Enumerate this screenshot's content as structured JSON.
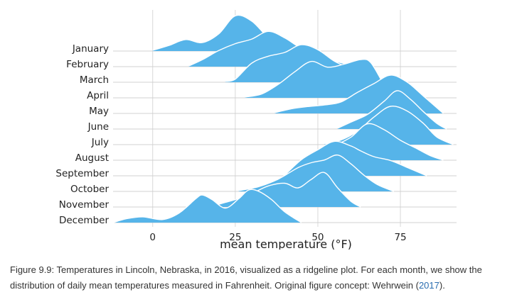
{
  "chart_data": {
    "type": "area",
    "subtype": "ridgeline",
    "xlabel": "mean temperature (°F)",
    "xlim": [
      -12,
      92
    ],
    "xticks": [
      0,
      25,
      50,
      75
    ],
    "tick_labels": [
      "0",
      "25",
      "50",
      "75"
    ],
    "grid": "vertical",
    "fill_color": "#56B4E9",
    "outline_color": "#ffffff",
    "categories": [
      "January",
      "February",
      "March",
      "April",
      "May",
      "June",
      "July",
      "August",
      "September",
      "October",
      "November",
      "December"
    ],
    "series": [
      {
        "name": "January",
        "x": [
          0,
          5,
          10,
          15,
          20,
          25,
          30,
          35,
          40,
          45
        ],
        "density": [
          0.02,
          0.15,
          0.3,
          0.22,
          0.45,
          0.92,
          0.78,
          0.35,
          0.08,
          0.0
        ]
      },
      {
        "name": "February",
        "x": [
          11,
          15,
          20,
          25,
          30,
          35,
          40,
          45,
          50,
          55,
          60,
          65
        ],
        "density": [
          0.02,
          0.18,
          0.42,
          0.6,
          0.72,
          0.92,
          0.75,
          0.48,
          0.35,
          0.15,
          0.05,
          0.0
        ]
      },
      {
        "name": "March",
        "x": [
          22,
          25,
          30,
          35,
          40,
          45,
          50,
          55,
          60,
          65,
          70
        ],
        "density": [
          0.02,
          0.08,
          0.5,
          0.68,
          0.78,
          0.98,
          0.85,
          0.55,
          0.35,
          0.12,
          0.0
        ]
      },
      {
        "name": "April",
        "x": [
          28,
          33,
          38,
          43,
          48,
          53,
          58,
          63,
          66,
          70,
          73
        ],
        "density": [
          0.02,
          0.1,
          0.35,
          0.68,
          0.95,
          0.8,
          0.88,
          1.0,
          0.92,
          0.35,
          0.0
        ]
      },
      {
        "name": "May",
        "x": [
          37,
          42,
          47,
          52,
          57,
          62,
          67,
          72,
          77,
          82,
          88
        ],
        "density": [
          0.02,
          0.12,
          0.18,
          0.22,
          0.3,
          0.55,
          0.78,
          1.0,
          0.82,
          0.45,
          0.0
        ]
      },
      {
        "name": "June",
        "x": [
          56,
          60,
          65,
          70,
          74,
          78,
          82,
          86,
          89
        ],
        "density": [
          0.02,
          0.18,
          0.38,
          0.72,
          1.0,
          0.78,
          0.45,
          0.15,
          0.0
        ]
      },
      {
        "name": "July",
        "x": [
          52,
          57,
          62,
          67,
          72,
          77,
          82,
          86,
          91
        ],
        "density": [
          0.02,
          0.12,
          0.35,
          0.72,
          1.0,
          0.88,
          0.55,
          0.2,
          0.0
        ]
      },
      {
        "name": "August",
        "x": [
          45,
          50,
          55,
          60,
          65,
          70,
          75,
          80,
          84,
          88
        ],
        "density": [
          0.02,
          0.2,
          0.38,
          0.6,
          0.95,
          0.8,
          0.52,
          0.3,
          0.12,
          0.0
        ]
      },
      {
        "name": "September",
        "x": [
          40,
          45,
          50,
          55,
          60,
          63,
          67,
          72,
          77,
          83
        ],
        "density": [
          0.02,
          0.42,
          0.68,
          0.9,
          0.78,
          0.65,
          0.5,
          0.4,
          0.22,
          0.0
        ]
      },
      {
        "name": "October",
        "x": [
          26,
          32,
          38,
          44,
          48,
          52,
          56,
          60,
          64,
          68,
          73
        ],
        "density": [
          0.02,
          0.12,
          0.32,
          0.62,
          0.75,
          0.82,
          0.95,
          0.72,
          0.42,
          0.18,
          0.0
        ]
      },
      {
        "name": "November",
        "x": [
          18,
          22,
          26,
          30,
          35,
          40,
          44,
          48,
          52,
          56,
          60,
          63
        ],
        "density": [
          0.02,
          0.12,
          0.22,
          0.35,
          0.55,
          0.62,
          0.5,
          0.72,
          0.9,
          0.5,
          0.15,
          0.0
        ]
      },
      {
        "name": "December",
        "x": [
          -12,
          -8,
          -3,
          3,
          8,
          13,
          15,
          18,
          22,
          26,
          29,
          32,
          36,
          40,
          45
        ],
        "density": [
          0.0,
          0.1,
          0.15,
          0.08,
          0.25,
          0.62,
          0.72,
          0.6,
          0.38,
          0.62,
          0.85,
          0.82,
          0.6,
          0.28,
          0.0
        ]
      }
    ]
  },
  "caption": {
    "text": "Figure 9.9: Temperatures in Lincoln, Nebraska, in 2016, visualized as a ridgeline plot. For each month, we show the distribution of daily mean temperatures measured in Fahrenheit. Original figure concept: Wehrwein (",
    "citation": "2017",
    "end": ")."
  }
}
